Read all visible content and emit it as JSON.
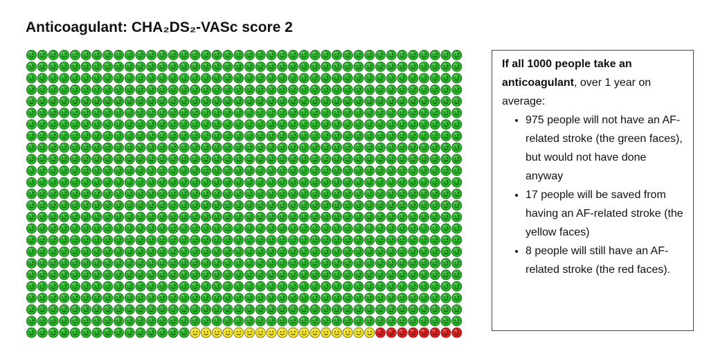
{
  "chart_data": {
    "type": "pictogram",
    "title": "Anticoagulant: CHA₂DS₂-VASc score 2",
    "values": [
      975,
      17,
      8
    ],
    "colors": [
      "#22b522",
      "#f2e21c",
      "#e01818"
    ],
    "note": {
      "heading": "If all 1000 people take an anticoagulant",
      "intro": ", over 1 year on average:",
      "bullets": [
        "975 people will not have an AF-related stroke (the green faces), but would not have done anyway",
        "17 people will be saved from having an AF-related stroke (the yellow faces)",
        "8 people will still have an AF-related stroke (the red faces)."
      ]
    }
  }
}
